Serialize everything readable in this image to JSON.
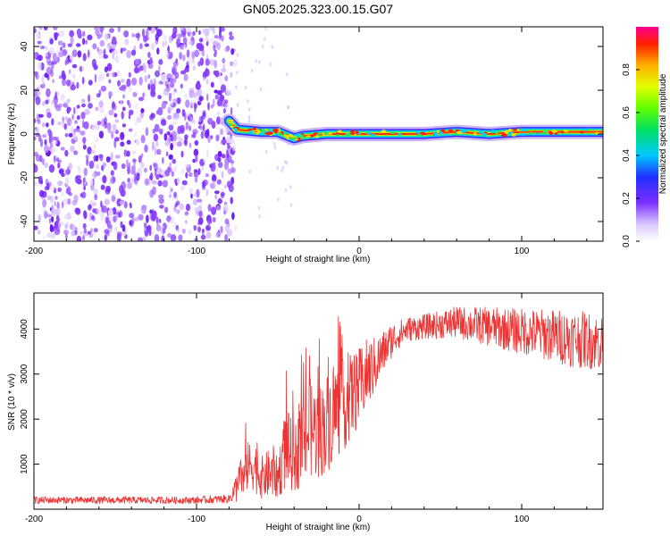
{
  "title": "GN05.2025.323.00.15.G07",
  "chart_data": [
    {
      "id": "top",
      "type": "heatmap",
      "xlabel": "Height of straight line (km)",
      "ylabel": "Frequency (Hz)",
      "xlim": [
        -200,
        150
      ],
      "ylim": [
        -49,
        49
      ],
      "xticks": [
        -200,
        -100,
        0,
        100
      ],
      "yticks": [
        -40,
        -20,
        0,
        20,
        40
      ],
      "noise_region_x": [
        -200,
        -76
      ],
      "signal_track": [
        {
          "x": -80,
          "y": 6
        },
        {
          "x": -75,
          "y": 2
        },
        {
          "x": -60,
          "y": 1
        },
        {
          "x": -50,
          "y": 1
        },
        {
          "x": -40,
          "y": -2
        },
        {
          "x": -35,
          "y": -1
        },
        {
          "x": -20,
          "y": 0
        },
        {
          "x": 0,
          "y": 0
        },
        {
          "x": 40,
          "y": 0
        },
        {
          "x": 60,
          "y": 1
        },
        {
          "x": 80,
          "y": 0
        },
        {
          "x": 100,
          "y": 1
        },
        {
          "x": 120,
          "y": 1
        },
        {
          "x": 150,
          "y": 1
        }
      ],
      "colorbar": {
        "label": "Normalized spectral amplitude",
        "range": [
          0,
          1
        ],
        "ticks": [
          "0.0",
          "0.2",
          "0.4",
          "0.6",
          "0.8"
        ]
      }
    },
    {
      "id": "bottom",
      "type": "line",
      "xlabel": "Height of straight line (km)",
      "ylabel": "SNR (10 * v/v)",
      "xlim": [
        -200,
        150
      ],
      "ylim": [
        0,
        4800
      ],
      "xticks": [
        -200,
        -100,
        0,
        100
      ],
      "yticks": [
        1000,
        2000,
        3000,
        4000
      ],
      "series": [
        {
          "name": "SNR",
          "color": "#ee3333",
          "x": [
            -200,
            -150,
            -100,
            -80,
            -75,
            -70,
            -65,
            -60,
            -55,
            -50,
            -45,
            -40,
            -35,
            -30,
            -25,
            -20,
            -15,
            -10,
            -5,
            0,
            5,
            10,
            15,
            20,
            25,
            30,
            40,
            50,
            60,
            70,
            80,
            90,
            100,
            110,
            120,
            130,
            140,
            150
          ],
          "y": [
            200,
            200,
            200,
            230,
            500,
            900,
            1000,
            700,
            800,
            700,
            1400,
            1100,
            1500,
            1800,
            1700,
            1900,
            2200,
            2300,
            2500,
            2700,
            3000,
            3200,
            3500,
            3750,
            3900,
            4000,
            4050,
            4100,
            4150,
            4100,
            4050,
            4000,
            3950,
            3900,
            3850,
            3800,
            3750,
            3700
          ],
          "spread": [
            100,
            100,
            100,
            120,
            450,
            700,
            750,
            600,
            700,
            600,
            1200,
            900,
            1300,
            1400,
            1300,
            1400,
            1400,
            1300,
            1200,
            1100,
            1000,
            800,
            600,
            500,
            400,
            350,
            350,
            400,
            450,
            500,
            550,
            600,
            650,
            700,
            750,
            800,
            800,
            800
          ]
        }
      ]
    }
  ]
}
